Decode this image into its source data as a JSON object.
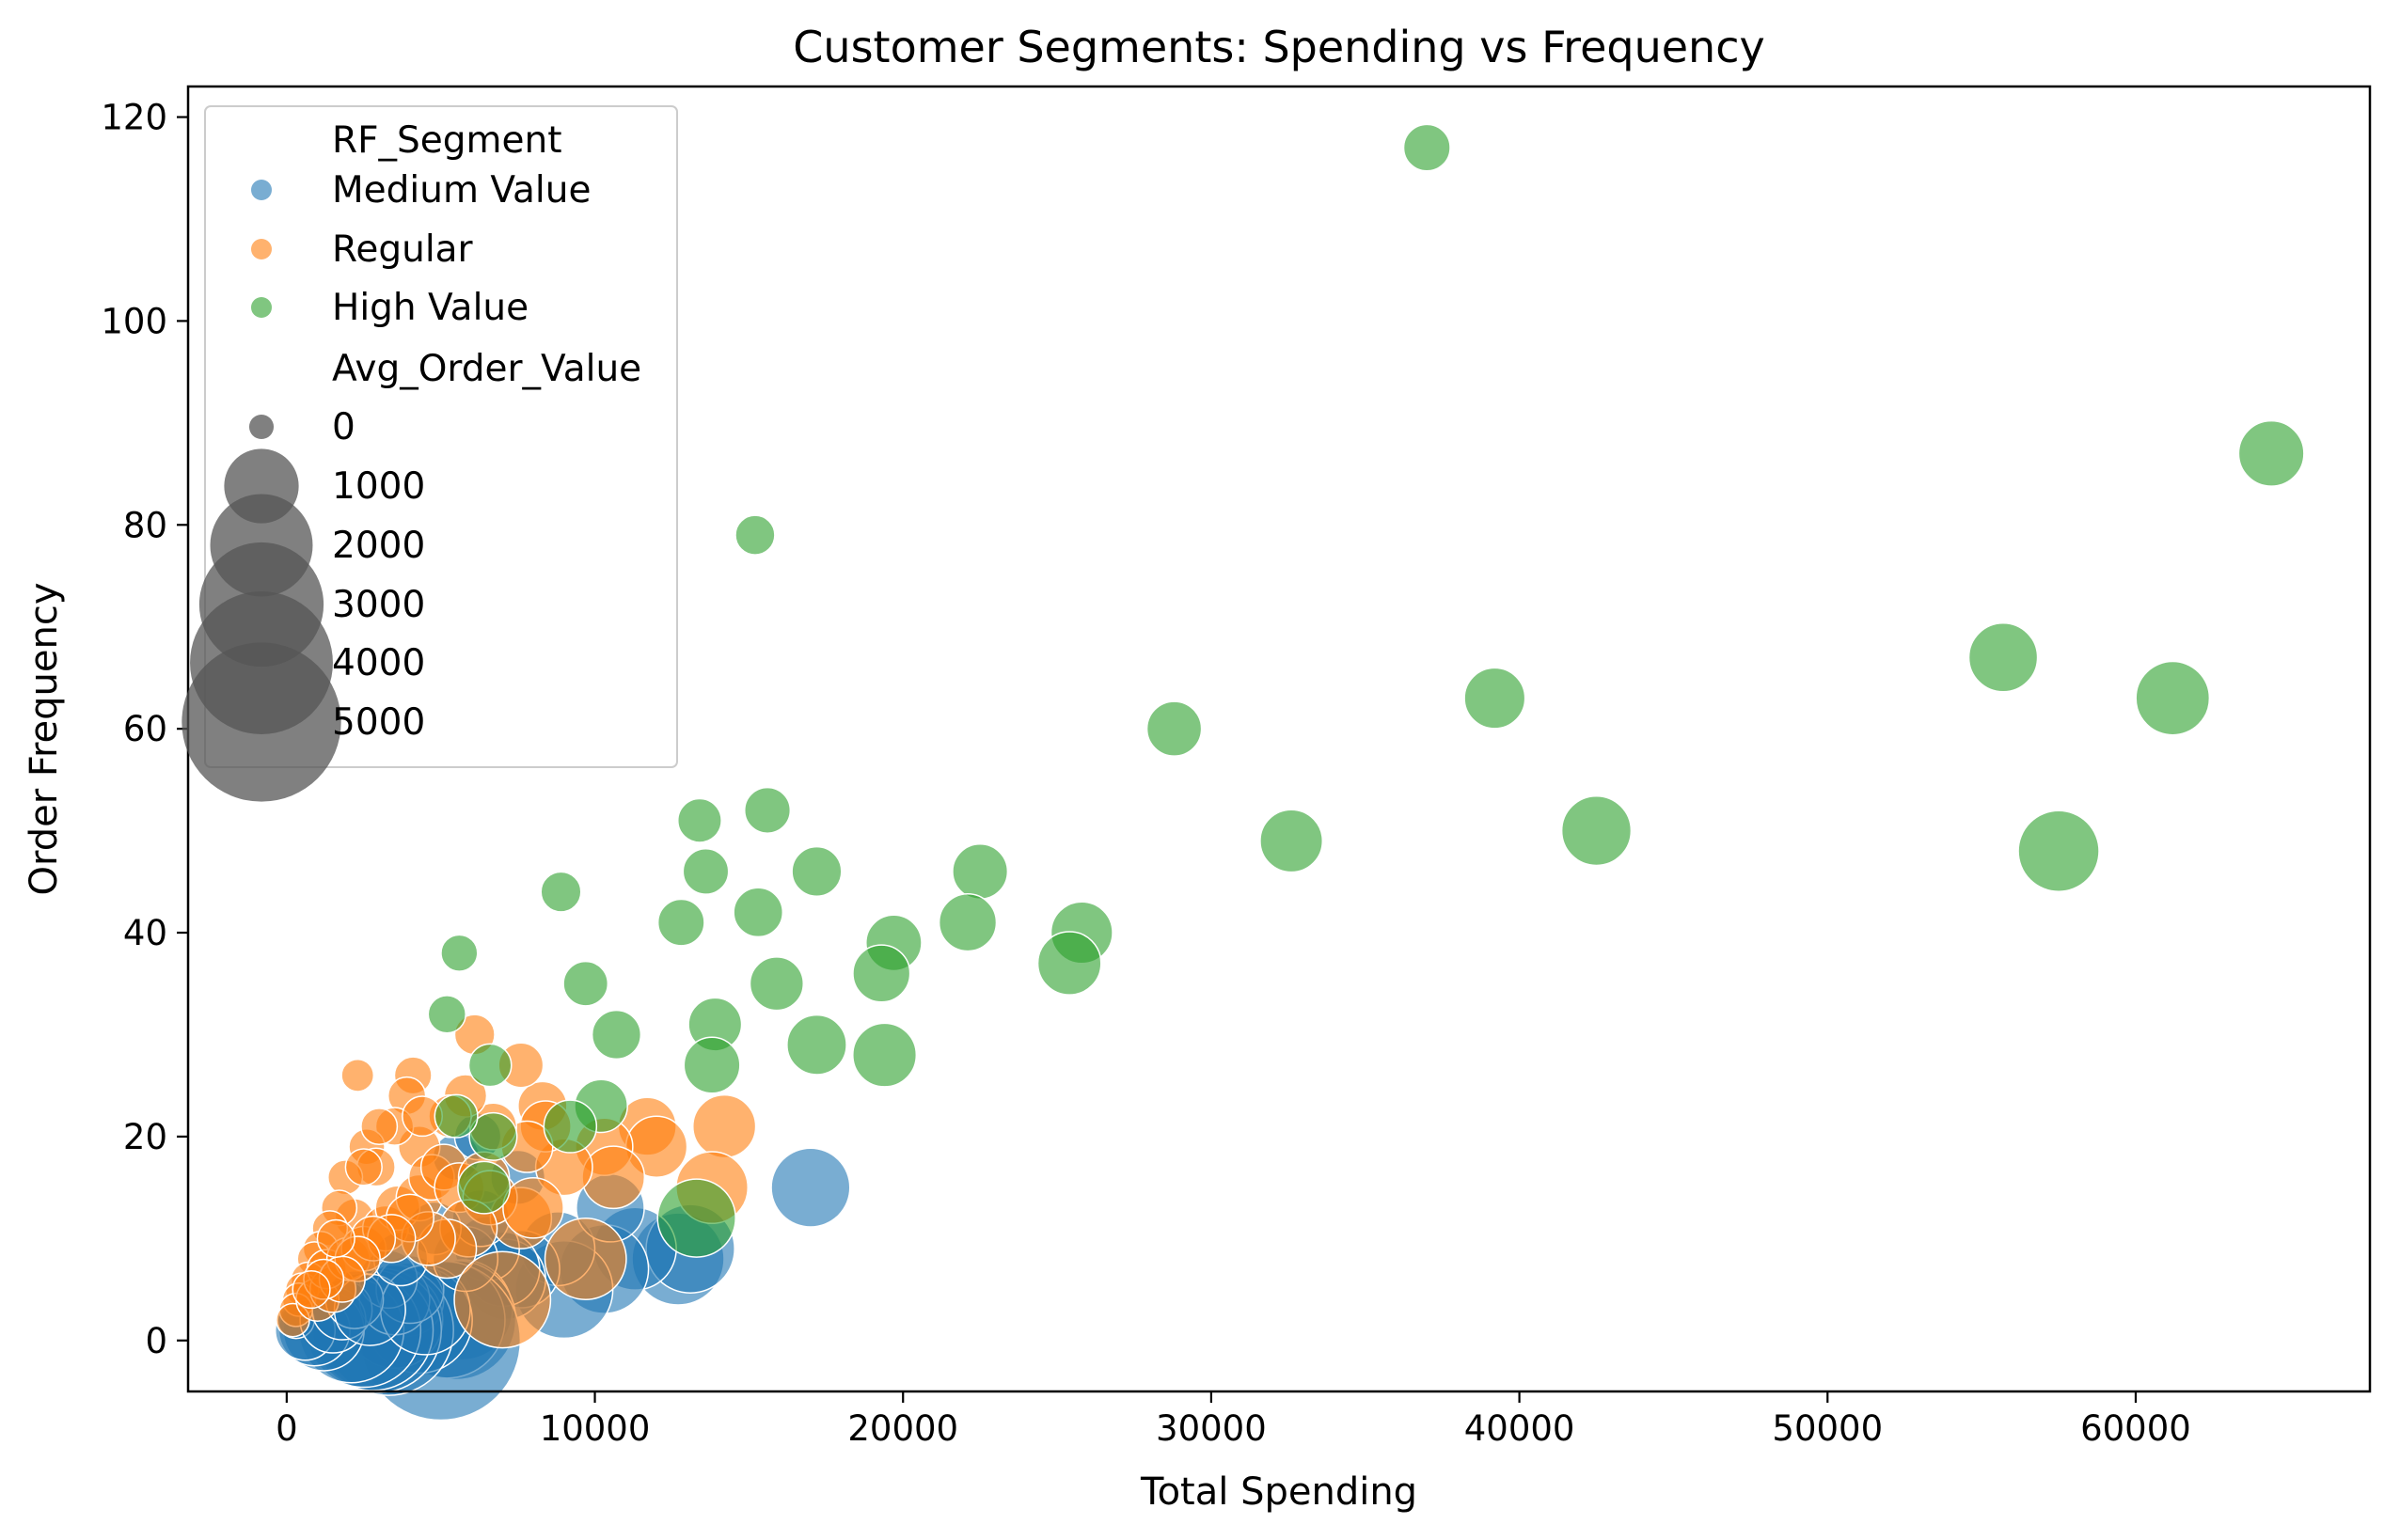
{
  "chart_data": {
    "type": "scatter",
    "title": "Customer Segments: Spending vs Frequency",
    "xlabel": "Total Spending",
    "ylabel": "Order Frequency",
    "xlim": [
      -3200,
      67600
    ],
    "ylim": [
      -5,
      123
    ],
    "xticks": [
      0,
      10000,
      20000,
      30000,
      40000,
      50000,
      60000
    ],
    "yticks": [
      0,
      20,
      40,
      60,
      80,
      100,
      120
    ],
    "grid": false,
    "legend": {
      "placement": "top-left",
      "hue_title": "RF_Segment",
      "size_title": "Avg_Order_Value",
      "size_entries": [
        "0",
        "1000",
        "2000",
        "3000",
        "4000",
        "5000"
      ],
      "size_values": [
        0,
        1000,
        2000,
        3000,
        4000,
        5000
      ]
    },
    "colors": {
      "Medium Value": "#1f77b4",
      "Regular": "#ff7f0e",
      "High Value": "#2ca02c",
      "size_legend": "#555555"
    },
    "series": [
      {
        "name": "Medium Value",
        "points": [
          [
            17000,
            15,
            1130
          ],
          [
            12700,
            8,
            1590
          ],
          [
            13100,
            9,
            1460
          ],
          [
            11300,
            9,
            1260
          ],
          [
            10300,
            7,
            1470
          ],
          [
            9000,
            5,
            1800
          ],
          [
            8800,
            9,
            980
          ],
          [
            10500,
            13,
            810
          ],
          [
            7600,
            7,
            1090
          ],
          [
            7100,
            6,
            1180
          ],
          [
            7000,
            7,
            1000
          ],
          [
            6500,
            9,
            720
          ],
          [
            7500,
            16,
            470
          ],
          [
            5700,
            3,
            1900
          ],
          [
            5500,
            2,
            2750
          ],
          [
            5200,
            2,
            2600
          ],
          [
            5000,
            0,
            5000
          ],
          [
            4300,
            2,
            2150
          ],
          [
            3900,
            4,
            975
          ],
          [
            3500,
            2,
            1750
          ],
          [
            3300,
            1,
            3300
          ],
          [
            3000,
            1,
            3000
          ],
          [
            2800,
            1,
            2800
          ],
          [
            2500,
            1,
            2500
          ],
          [
            2100,
            1,
            2100
          ],
          [
            3500,
            4,
            875
          ],
          [
            4000,
            5,
            800
          ],
          [
            3300,
            6,
            550
          ],
          [
            4500,
            3,
            1500
          ],
          [
            5800,
            8,
            725
          ],
          [
            5500,
            18,
            310
          ],
          [
            6200,
            20,
            310
          ],
          [
            1200,
            1,
            1200
          ],
          [
            900,
            1,
            900
          ],
          [
            600,
            1,
            600
          ],
          [
            300,
            2,
            150
          ],
          [
            1500,
            2,
            750
          ],
          [
            1800,
            3,
            600
          ],
          [
            2200,
            4,
            550
          ],
          [
            2700,
            3,
            900
          ],
          [
            6300,
            12,
            525
          ],
          [
            4800,
            11,
            440
          ],
          [
            3700,
            8,
            460
          ]
        ]
      },
      {
        "name": "Regular",
        "points": [
          [
            14200,
            21,
            676
          ],
          [
            13800,
            15,
            920
          ],
          [
            11700,
            21,
            557
          ],
          [
            12000,
            19,
            632
          ],
          [
            10300,
            19,
            542
          ],
          [
            10600,
            16,
            663
          ],
          [
            9000,
            17,
            529
          ],
          [
            8300,
            23,
            361
          ],
          [
            8400,
            21,
            400
          ],
          [
            7600,
            27,
            280
          ],
          [
            7800,
            19,
            411
          ],
          [
            7600,
            12,
            633
          ],
          [
            6100,
            30,
            203
          ],
          [
            6700,
            21,
            319
          ],
          [
            5800,
            24,
            242
          ],
          [
            5300,
            22,
            241
          ],
          [
            4100,
            26,
            158
          ],
          [
            3900,
            24,
            163
          ],
          [
            2300,
            26,
            88
          ],
          [
            4300,
            19,
            226
          ],
          [
            3500,
            21,
            167
          ],
          [
            2600,
            19,
            137
          ],
          [
            2900,
            17,
            171
          ],
          [
            1900,
            16,
            119
          ],
          [
            2200,
            12,
            183
          ],
          [
            1700,
            13,
            131
          ],
          [
            1400,
            11,
            127
          ],
          [
            1100,
            9,
            122
          ],
          [
            900,
            8,
            113
          ],
          [
            700,
            6,
            117
          ],
          [
            500,
            5,
            100
          ],
          [
            400,
            4,
            100
          ],
          [
            300,
            3,
            100
          ],
          [
            200,
            2,
            100
          ],
          [
            1000,
            4,
            250
          ],
          [
            1500,
            5,
            300
          ],
          [
            1300,
            7,
            186
          ],
          [
            2000,
            8,
            250
          ],
          [
            2500,
            9,
            278
          ],
          [
            3200,
            11,
            291
          ],
          [
            3600,
            13,
            277
          ],
          [
            4300,
            14,
            307
          ],
          [
            4700,
            16,
            294
          ],
          [
            5100,
            17,
            300
          ],
          [
            5600,
            15,
            373
          ],
          [
            6400,
            16,
            400
          ],
          [
            6600,
            14,
            471
          ],
          [
            5900,
            11,
            536
          ],
          [
            5200,
            9,
            578
          ],
          [
            4600,
            10,
            460
          ],
          [
            4000,
            12,
            333
          ],
          [
            3400,
            10,
            340
          ],
          [
            2800,
            10,
            280
          ],
          [
            2300,
            8,
            288
          ],
          [
            1800,
            6,
            300
          ],
          [
            9700,
            8,
            1213
          ],
          [
            7000,
            4,
            1750
          ],
          [
            8000,
            13,
            615
          ],
          [
            4400,
            22,
            200
          ],
          [
            3000,
            21,
            143
          ],
          [
            2500,
            17,
            147
          ],
          [
            1600,
            10,
            160
          ],
          [
            1200,
            6,
            200
          ],
          [
            800,
            5,
            160
          ]
        ]
      },
      {
        "name": "High Value",
        "points": [
          [
            37000,
            117,
            316
          ],
          [
            64400,
            87,
            740
          ],
          [
            15200,
            79,
            192
          ],
          [
            55700,
            67,
            831
          ],
          [
            39200,
            63,
            622
          ],
          [
            61200,
            63,
            971
          ],
          [
            28800,
            60,
            480
          ],
          [
            42500,
            50,
            850
          ],
          [
            57500,
            48,
            1198
          ],
          [
            32600,
            49,
            665
          ],
          [
            15600,
            52,
            300
          ],
          [
            13400,
            51,
            263
          ],
          [
            22500,
            46,
            489
          ],
          [
            17200,
            46,
            374
          ],
          [
            13600,
            46,
            296
          ],
          [
            8900,
            44,
            202
          ],
          [
            15300,
            42,
            364
          ],
          [
            12800,
            41,
            312
          ],
          [
            22100,
            41,
            539
          ],
          [
            25800,
            40,
            645
          ],
          [
            19700,
            39,
            505
          ],
          [
            5600,
            38,
            147
          ],
          [
            25400,
            37,
            686
          ],
          [
            19300,
            36,
            536
          ],
          [
            9700,
            35,
            277
          ],
          [
            15900,
            35,
            454
          ],
          [
            13900,
            31,
            448
          ],
          [
            10700,
            30,
            357
          ],
          [
            17200,
            29,
            593
          ],
          [
            19400,
            28,
            693
          ],
          [
            13800,
            27,
            511
          ],
          [
            6600,
            27,
            244
          ],
          [
            5200,
            32,
            163
          ],
          [
            10200,
            23,
            443
          ],
          [
            9200,
            21,
            438
          ],
          [
            6700,
            20,
            335
          ],
          [
            13300,
            12,
            1108
          ],
          [
            5500,
            22,
            250
          ],
          [
            6400,
            15,
            427
          ]
        ]
      }
    ]
  }
}
